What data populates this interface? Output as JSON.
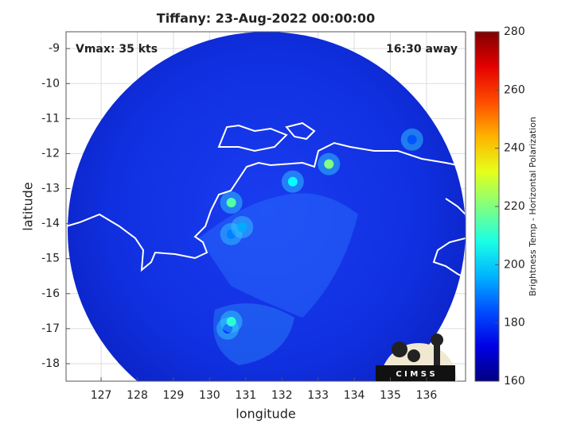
{
  "chart_data": {
    "type": "map",
    "title": "Tiffany: 23-Aug-2022 00:00:00",
    "annotations": [
      "Vmax: 35 kts",
      "16:30 away"
    ],
    "x_label": "longitude",
    "y_label": "latitude",
    "xlim": [
      126.03,
      137.08
    ],
    "xticks": [
      127,
      128,
      129,
      130,
      131,
      132,
      133,
      134,
      135,
      136
    ],
    "ylim": [
      -18.5,
      -8.52
    ],
    "yticks": [
      -18,
      -17,
      -16,
      -15,
      -14,
      -13,
      -12,
      -11,
      -10,
      -9
    ],
    "grid": true,
    "colorbar": {
      "label": "Brightness Temp - Horizontal Polarization",
      "clim": [
        160,
        280
      ],
      "ticks": [
        160,
        180,
        200,
        220,
        240,
        260,
        280
      ]
    },
    "points": {
      "x": [
        130.5,
        130.6,
        130.9,
        130.6,
        132.3,
        133.3,
        135.6,
        130.6
      ],
      "y": [
        -17.0,
        -14.3,
        -14.1,
        -13.4,
        -12.8,
        -12.3,
        -11.6,
        -16.8
      ],
      "values": [
        180,
        190,
        195,
        215,
        205,
        220,
        185,
        210
      ]
    },
    "logo": "C I M S S"
  }
}
